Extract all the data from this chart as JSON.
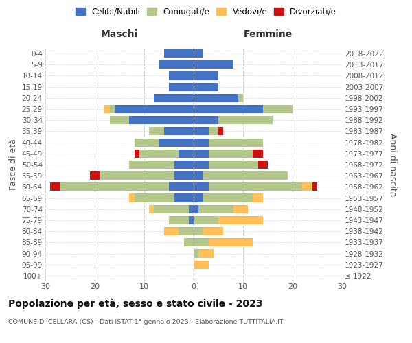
{
  "age_groups": [
    "100+",
    "95-99",
    "90-94",
    "85-89",
    "80-84",
    "75-79",
    "70-74",
    "65-69",
    "60-64",
    "55-59",
    "50-54",
    "45-49",
    "40-44",
    "35-39",
    "30-34",
    "25-29",
    "20-24",
    "15-19",
    "10-14",
    "5-9",
    "0-4"
  ],
  "birth_years": [
    "≤ 1922",
    "1923-1927",
    "1928-1932",
    "1933-1937",
    "1938-1942",
    "1943-1947",
    "1948-1952",
    "1953-1957",
    "1958-1962",
    "1963-1967",
    "1968-1972",
    "1973-1977",
    "1978-1982",
    "1983-1987",
    "1988-1992",
    "1993-1997",
    "1998-2002",
    "2003-2007",
    "2008-2012",
    "2013-2017",
    "2018-2022"
  ],
  "male": {
    "celibi": [
      0,
      0,
      0,
      0,
      0,
      1,
      1,
      4,
      5,
      4,
      4,
      3,
      7,
      6,
      13,
      16,
      8,
      5,
      5,
      7,
      6
    ],
    "coniugati": [
      0,
      0,
      0,
      2,
      3,
      4,
      7,
      8,
      22,
      15,
      9,
      8,
      5,
      3,
      4,
      1,
      0,
      0,
      0,
      0,
      0
    ],
    "vedovi": [
      0,
      0,
      0,
      0,
      3,
      0,
      1,
      1,
      0,
      0,
      0,
      0,
      0,
      0,
      0,
      1,
      0,
      0,
      0,
      0,
      0
    ],
    "divorziati": [
      0,
      0,
      0,
      0,
      0,
      0,
      0,
      0,
      2,
      2,
      0,
      1,
      0,
      0,
      0,
      0,
      0,
      0,
      0,
      0,
      0
    ]
  },
  "female": {
    "nubili": [
      0,
      0,
      0,
      0,
      0,
      0,
      1,
      2,
      3,
      2,
      3,
      3,
      3,
      3,
      5,
      14,
      9,
      5,
      5,
      8,
      2
    ],
    "coniugate": [
      0,
      0,
      1,
      3,
      2,
      5,
      7,
      10,
      19,
      17,
      10,
      9,
      11,
      2,
      11,
      6,
      1,
      0,
      0,
      0,
      0
    ],
    "vedove": [
      0,
      3,
      3,
      9,
      4,
      9,
      3,
      2,
      2,
      0,
      0,
      0,
      0,
      0,
      0,
      0,
      0,
      0,
      0,
      0,
      0
    ],
    "divorziate": [
      0,
      0,
      0,
      0,
      0,
      0,
      0,
      0,
      1,
      0,
      2,
      2,
      0,
      1,
      0,
      0,
      0,
      0,
      0,
      0,
      0
    ]
  },
  "colors": {
    "celibi": "#4472c4",
    "coniugati": "#b3c78b",
    "vedovi": "#ffc05a",
    "divorziati": "#cc1111"
  },
  "title": "Popolazione per età, sesso e stato civile - 2023",
  "subtitle": "COMUNE DI CELLARA (CS) - Dati ISTAT 1° gennaio 2023 - Elaborazione TUTTITALIA.IT",
  "xlabel_left": "Maschi",
  "xlabel_right": "Femmine",
  "ylabel_left": "Fasce di età",
  "ylabel_right": "Anni di nascita",
  "xlim": 30,
  "legend_labels": [
    "Celibi/Nubili",
    "Coniugati/e",
    "Vedovi/e",
    "Divorziati/e"
  ],
  "background_color": "#ffffff",
  "grid_color": "#cccccc"
}
